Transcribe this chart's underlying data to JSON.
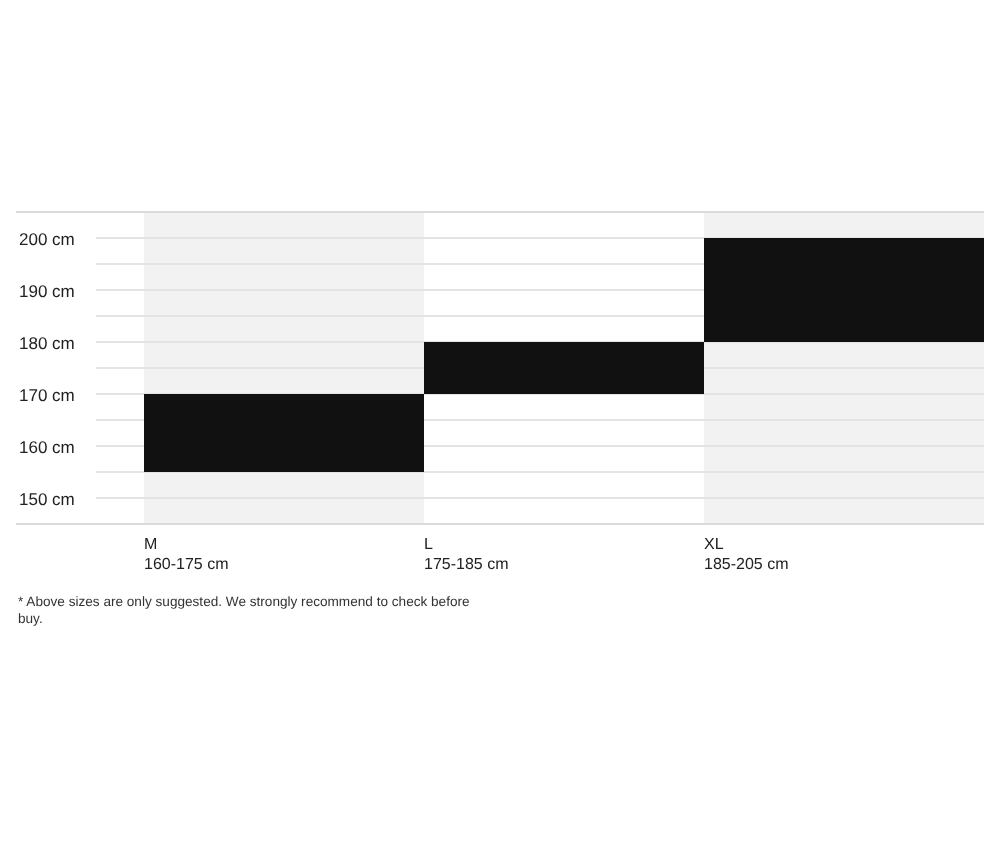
{
  "chart_data": {
    "type": "bar",
    "categories": [
      "M\n160-175 cm",
      "L\n175-185 cm",
      "XL\n185-205 cm"
    ],
    "base": [
      155,
      170,
      180
    ],
    "values": [
      15,
      10,
      20
    ],
    "color": "#111111",
    "ylim": [
      145,
      205
    ],
    "yticks": [
      {
        "value": 150,
        "label": "150 cm"
      },
      {
        "value": 155,
        "label": null
      },
      {
        "value": 160,
        "label": "160 cm"
      },
      {
        "value": 165,
        "label": null
      },
      {
        "value": 170,
        "label": "170 cm"
      },
      {
        "value": 175,
        "label": null
      },
      {
        "value": 180,
        "label": "180 cm"
      },
      {
        "value": 185,
        "label": null
      },
      {
        "value": 190,
        "label": "190 cm"
      },
      {
        "value": 195,
        "label": null
      },
      {
        "value": 200,
        "label": "200 cm"
      }
    ],
    "grid": "y",
    "annotations": [
      "* Above sizes are only suggested. We strongly recommend to check before buy."
    ]
  }
}
